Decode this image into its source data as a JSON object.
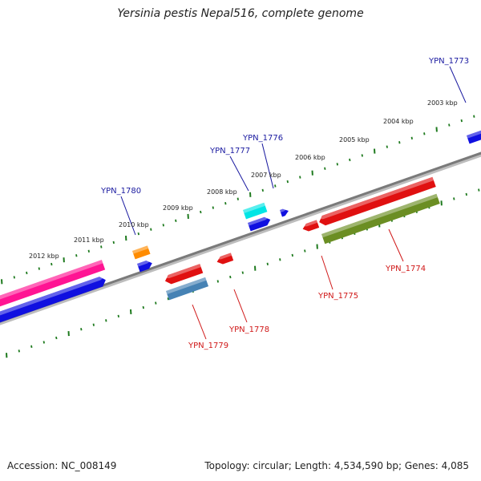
{
  "title": "Yersinia pestis Nepal516, complete genome",
  "footer": {
    "accession": "Accession: NC_008149",
    "topology": "Topology: circular; Length: 4,534,590 bp; Genes: 4,085"
  },
  "colors": {
    "forward_label": "#1a1aa0",
    "reverse_label": "#d01818",
    "tick": "#1e7a1e",
    "backbone": "#7a7a7a"
  },
  "scale_labels": [
    "2003 kbp",
    "2004 kbp",
    "2005 kbp",
    "2006 kbp",
    "2007 kbp",
    "2008 kbp",
    "2009 kbp",
    "2010 kbp",
    "2011 kbp",
    "2012 kbp"
  ],
  "genes": [
    {
      "label": "YPN_1773",
      "strand": "forward",
      "color": "#1010e0"
    },
    {
      "label": "YPN_1774",
      "strand": "reverse",
      "color": "#6b8e23"
    },
    {
      "label": "YPN_1775",
      "strand": "reverse",
      "color": "#e01010"
    },
    {
      "label": "YPN_1776",
      "strand": "forward",
      "color": "#1010e0"
    },
    {
      "label": "YPN_1777",
      "strand": "forward",
      "color": "#00e5e5"
    },
    {
      "label": "YPN_1778",
      "strand": "reverse",
      "color": "#e01010"
    },
    {
      "label": "YPN_1779",
      "strand": "reverse",
      "color": "#4682b4"
    },
    {
      "label": "YPN_1780",
      "strand": "forward",
      "color": "#ff8c00"
    }
  ],
  "unlabeled_features": [
    {
      "strand": "forward",
      "color": "#ff1493"
    },
    {
      "strand": "forward",
      "color": "#1010e0"
    },
    {
      "strand": "forward",
      "color": "#1010e0"
    },
    {
      "strand": "reverse",
      "color": "#e01010"
    },
    {
      "strand": "reverse",
      "color": "#e01010"
    },
    {
      "strand": "reverse",
      "color": "#e01010"
    }
  ]
}
